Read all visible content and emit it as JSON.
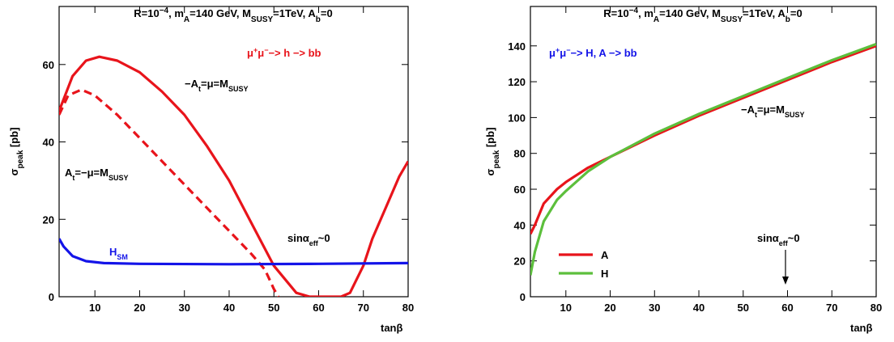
{
  "chart_data": [
    {
      "type": "line",
      "title": [
        {
          "text": "R=10"
        },
        {
          "text": "−4",
          "pos": "sup"
        },
        {
          "text": ", m"
        },
        {
          "text": "A",
          "pos": "sub"
        },
        {
          "text": "=140 GeV, M"
        },
        {
          "text": "SUSY",
          "pos": "sub"
        },
        {
          "text": "=1TeV, A"
        },
        {
          "text": "b",
          "pos": "sub"
        },
        {
          "text": "=0"
        }
      ],
      "xlabel": [
        {
          "text": "tanβ"
        }
      ],
      "ylabel": [
        {
          "text": "σ"
        },
        {
          "text": "peak",
          "pos": "sub"
        },
        {
          "text": "  [pb]"
        }
      ],
      "xlim": [
        2,
        80
      ],
      "ylim": [
        0,
        75
      ],
      "xticks": [
        10,
        20,
        30,
        40,
        50,
        60,
        70,
        80
      ],
      "yticks": [
        0,
        20,
        40,
        60
      ],
      "series": [
        {
          "color": "#e8141b",
          "x": [
            2,
            3,
            5,
            8,
            11,
            15,
            20,
            25,
            30,
            35,
            40,
            45,
            50,
            55,
            58,
            60,
            65,
            67,
            70,
            72,
            75,
            78,
            80
          ],
          "values": [
            48,
            51,
            57,
            61,
            62,
            61,
            58,
            53,
            47,
            39,
            30,
            19,
            8,
            1,
            0,
            0,
            0,
            1,
            8,
            15,
            23,
            31,
            35
          ]
        },
        {
          "color": "#e8141b",
          "dash": true,
          "x": [
            2,
            4,
            7,
            10,
            15,
            20,
            25,
            30,
            35,
            40,
            45,
            48,
            50,
            51
          ],
          "values": [
            47,
            52,
            53.5,
            52,
            47,
            41,
            35,
            29,
            23,
            17,
            11,
            7,
            2,
            0
          ]
        },
        {
          "color": "#1414e8",
          "x": [
            2,
            3,
            5,
            8,
            12,
            20,
            40,
            60,
            80
          ],
          "values": [
            15,
            13,
            10.5,
            9.2,
            8.7,
            8.5,
            8.4,
            8.5,
            8.7
          ]
        }
      ],
      "annotations": [
        {
          "color": "#e8141b",
          "text": [
            {
              "text": "μ"
            },
            {
              "text": "+",
              "pos": "sup"
            },
            {
              "text": "μ"
            },
            {
              "text": "−",
              "pos": "sup"
            },
            {
              "text": "−> h −> bb"
            }
          ]
        },
        {
          "color": "#000000",
          "text": [
            {
              "text": "−A"
            },
            {
              "text": "t",
              "pos": "sub"
            },
            {
              "text": "=μ=M"
            },
            {
              "text": "SUSY",
              "pos": "sub"
            }
          ]
        },
        {
          "color": "#000000",
          "text": [
            {
              "text": "A"
            },
            {
              "text": "t",
              "pos": "sub"
            },
            {
              "text": "=−μ=M"
            },
            {
              "text": "SUSY",
              "pos": "sub"
            }
          ]
        },
        {
          "color": "#1414e8",
          "text": [
            {
              "text": "H"
            },
            {
              "text": "SM",
              "pos": "sub"
            }
          ]
        },
        {
          "color": "#000000",
          "text": [
            {
              "text": "sinα"
            },
            {
              "text": "eff",
              "pos": "sub"
            },
            {
              "text": "~0"
            }
          ]
        }
      ]
    },
    {
      "type": "line",
      "title": [
        {
          "text": "R=10"
        },
        {
          "text": "−4",
          "pos": "sup"
        },
        {
          "text": ", m"
        },
        {
          "text": "A",
          "pos": "sub"
        },
        {
          "text": "=140 GeV, M"
        },
        {
          "text": "SUSY",
          "pos": "sub"
        },
        {
          "text": "=1TeV, A"
        },
        {
          "text": "b",
          "pos": "sub"
        },
        {
          "text": "=0"
        }
      ],
      "xlabel": [
        {
          "text": "tanβ"
        }
      ],
      "ylabel": [
        {
          "text": "σ"
        },
        {
          "text": "peak",
          "pos": "sub"
        },
        {
          "text": "  [pb]"
        }
      ],
      "xlim": [
        2,
        80
      ],
      "ylim": [
        0,
        162
      ],
      "xticks": [
        10,
        20,
        30,
        40,
        50,
        60,
        70,
        80
      ],
      "yticks": [
        0,
        20,
        40,
        60,
        80,
        100,
        120,
        140
      ],
      "series": [
        {
          "name": "A",
          "color": "#e8141b",
          "x": [
            2,
            3,
            5,
            8,
            10,
            15,
            20,
            30,
            40,
            50,
            60,
            70,
            80
          ],
          "values": [
            35,
            40,
            52,
            60,
            64,
            72,
            78,
            90,
            101,
            111,
            121,
            131,
            140
          ]
        },
        {
          "name": "H",
          "color": "#5cbf3c",
          "x": [
            2,
            3,
            5,
            8,
            10,
            15,
            20,
            30,
            40,
            50,
            60,
            70,
            80
          ],
          "values": [
            12,
            25,
            42,
            54,
            59,
            70,
            78,
            91,
            102,
            112,
            122,
            132,
            141
          ]
        }
      ],
      "annotations": [
        {
          "color": "#1414e8",
          "text": [
            {
              "text": "μ"
            },
            {
              "text": "+",
              "pos": "sup"
            },
            {
              "text": "μ"
            },
            {
              "text": "−",
              "pos": "sup"
            },
            {
              "text": "−> H, A −> bb"
            }
          ]
        },
        {
          "color": "#000000",
          "text": [
            {
              "text": "−A"
            },
            {
              "text": "t",
              "pos": "sub"
            },
            {
              "text": "=μ=M"
            },
            {
              "text": "SUSY",
              "pos": "sub"
            }
          ]
        },
        {
          "color": "#000000",
          "text": [
            {
              "text": "sinα"
            },
            {
              "text": "eff",
              "pos": "sub"
            },
            {
              "text": "~0"
            }
          ]
        }
      ]
    }
  ]
}
